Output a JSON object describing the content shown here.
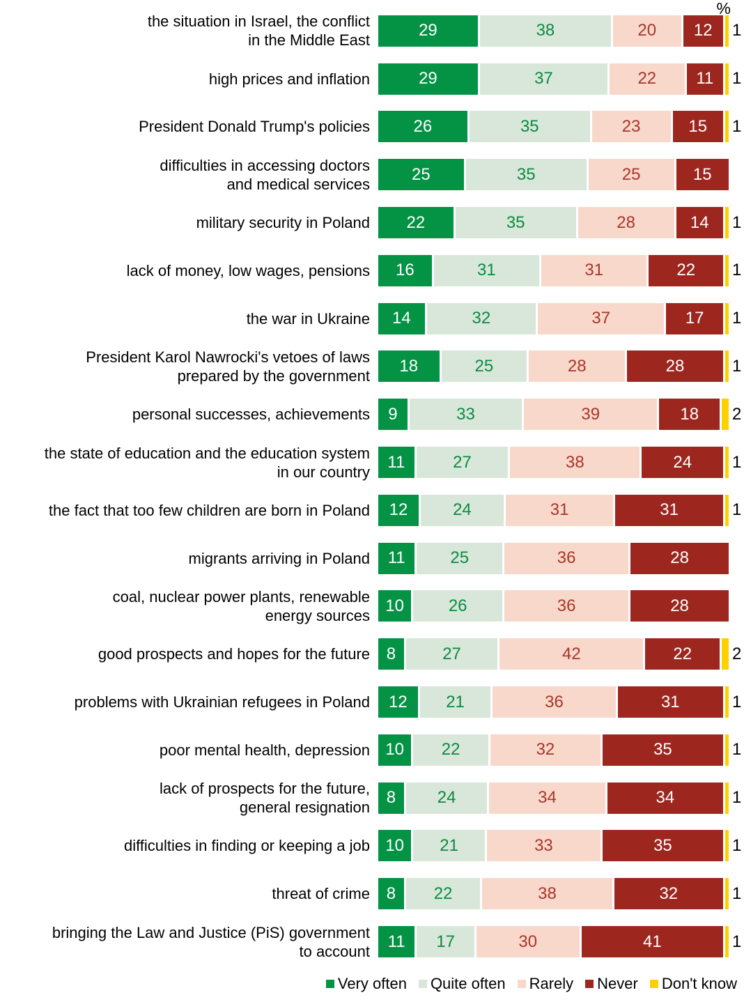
{
  "chart_data": {
    "type": "bar",
    "stacked": true,
    "orientation": "horizontal",
    "unit_label": "%",
    "value_range": [
      0,
      100
    ],
    "legend_position": "bottom-right",
    "series": [
      {
        "name": "Very often",
        "key": "very-often",
        "color": "#049245",
        "value_text_color": "#ffffff"
      },
      {
        "name": "Quite often",
        "key": "quite-often",
        "color": "#d8e7d9",
        "value_text_color": "#0d8a42"
      },
      {
        "name": "Rarely",
        "key": "rarely",
        "color": "#f8d8cb",
        "value_text_color": "#a8362a"
      },
      {
        "name": "Never",
        "key": "never",
        "color": "#9d261f",
        "value_text_color": "#ffffff"
      },
      {
        "name": "Don't know",
        "key": "dont-know",
        "color": "#fdd000",
        "value_text_color": "#000000"
      }
    ],
    "rows": [
      {
        "label": "the situation in Israel, the conflict\nin the Middle East",
        "values": [
          29,
          38,
          20,
          12,
          1
        ]
      },
      {
        "label": "high prices and inflation",
        "values": [
          29,
          37,
          22,
          11,
          1
        ]
      },
      {
        "label": "President Donald Trump's policies",
        "values": [
          26,
          35,
          23,
          15,
          1
        ]
      },
      {
        "label": "difficulties in accessing doctors\nand medical services",
        "values": [
          25,
          35,
          25,
          15,
          0
        ]
      },
      {
        "label": "military security in Poland",
        "values": [
          22,
          35,
          28,
          14,
          1
        ]
      },
      {
        "label": "lack of money, low wages, pensions",
        "values": [
          16,
          31,
          31,
          22,
          1
        ]
      },
      {
        "label": "the war in Ukraine",
        "values": [
          14,
          32,
          37,
          17,
          1
        ]
      },
      {
        "label": "President Karol Nawrocki's vetoes of laws\nprepared by the government",
        "values": [
          18,
          25,
          28,
          28,
          1
        ]
      },
      {
        "label": "personal successes, achievements",
        "values": [
          9,
          33,
          39,
          18,
          2
        ]
      },
      {
        "label": "the state of education and the education system\nin our country",
        "values": [
          11,
          27,
          38,
          24,
          1
        ]
      },
      {
        "label": "the fact that too few children are born in Poland",
        "values": [
          12,
          24,
          31,
          31,
          1
        ]
      },
      {
        "label": "migrants arriving in Poland",
        "values": [
          11,
          25,
          36,
          28,
          0
        ]
      },
      {
        "label": "coal, nuclear power plants, renewable\nenergy sources",
        "values": [
          10,
          26,
          36,
          28,
          0
        ]
      },
      {
        "label": "good prospects and hopes for the future",
        "values": [
          8,
          27,
          42,
          22,
          2
        ]
      },
      {
        "label": "problems with Ukrainian refugees in Poland",
        "values": [
          12,
          21,
          36,
          31,
          1
        ]
      },
      {
        "label": "poor mental health, depression",
        "values": [
          10,
          22,
          32,
          35,
          1
        ]
      },
      {
        "label": "lack of prospects for the future,\ngeneral resignation",
        "values": [
          8,
          24,
          34,
          34,
          1
        ]
      },
      {
        "label": "difficulties in finding or keeping a job",
        "values": [
          10,
          21,
          33,
          35,
          1
        ]
      },
      {
        "label": "threat of crime",
        "values": [
          8,
          22,
          38,
          32,
          1
        ]
      },
      {
        "label": "bringing the Law and Justice (PiS) government\nto account",
        "values": [
          11,
          17,
          30,
          41,
          1
        ]
      }
    ]
  }
}
